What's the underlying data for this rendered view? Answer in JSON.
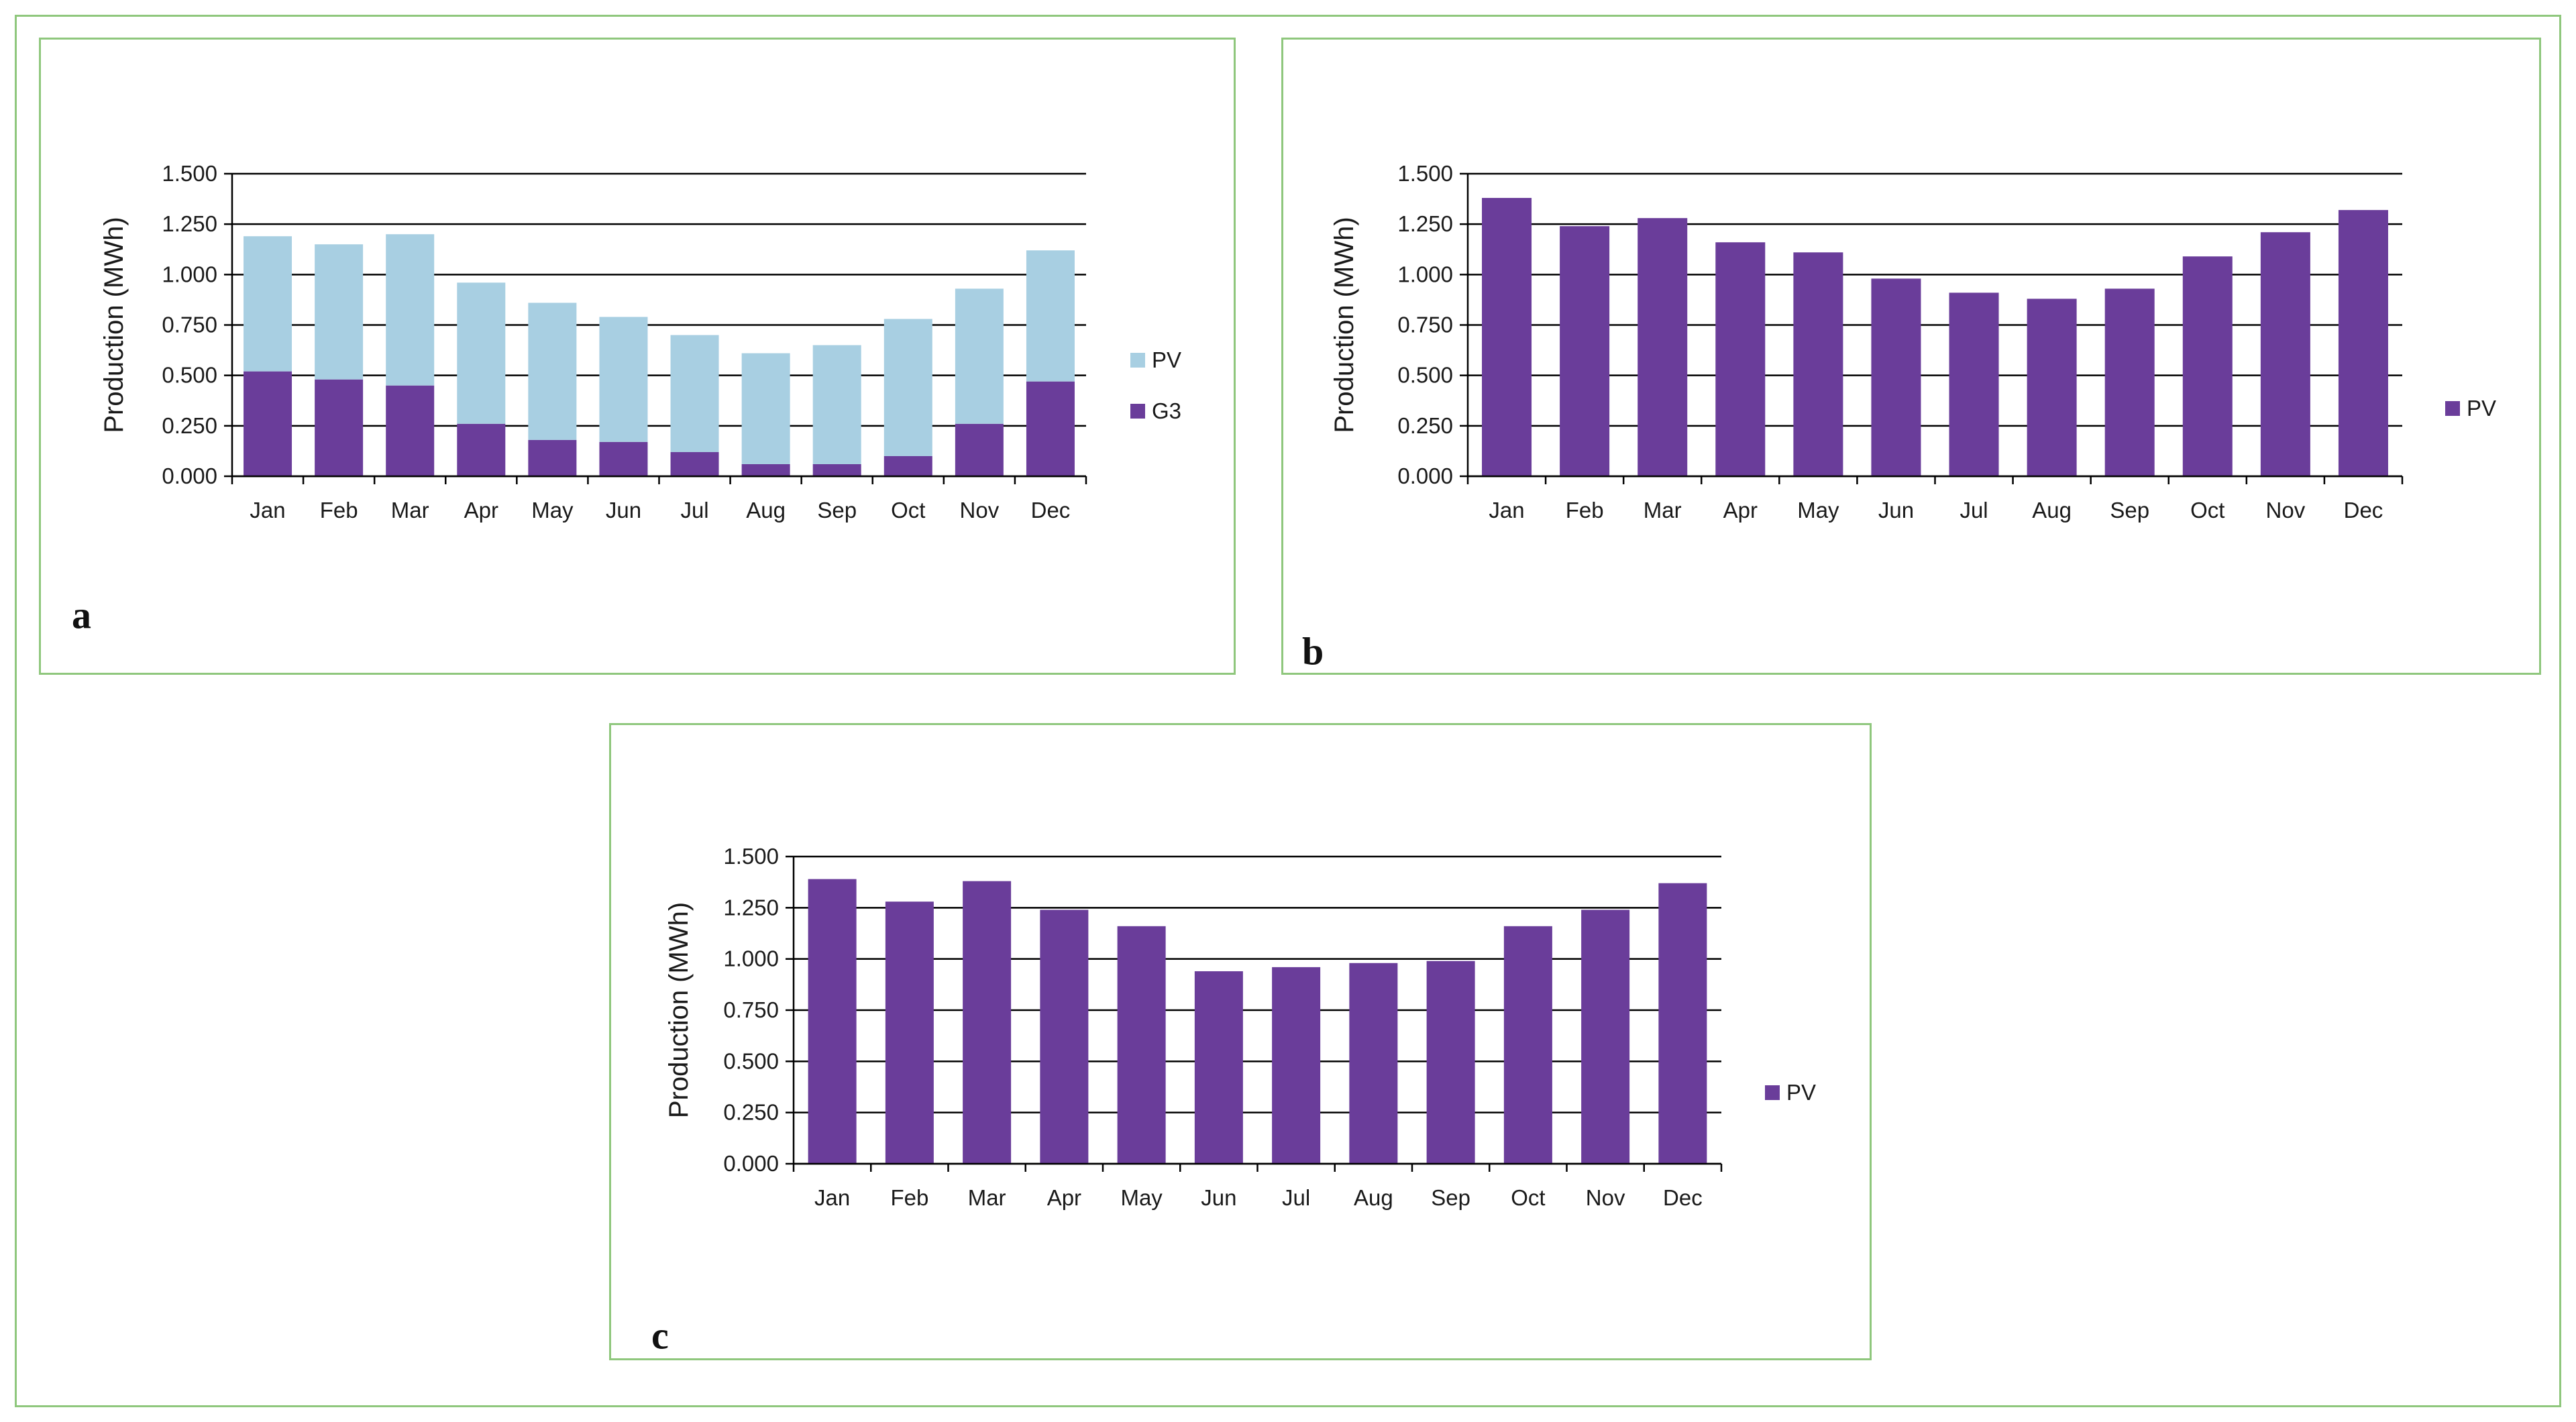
{
  "colors": {
    "frame": "#8fc77d",
    "pv_light": "#a8cfe2",
    "purple": "#6a3d9a",
    "grid": "#000000",
    "text": "#1a1a1a"
  },
  "panels": [
    {
      "letter": "a"
    },
    {
      "letter": "b"
    },
    {
      "letter": "c"
    }
  ],
  "chart_data": [
    {
      "type": "bar",
      "stacked": true,
      "categories": [
        "Jan",
        "Feb",
        "Mar",
        "Apr",
        "May",
        "Jun",
        "Jul",
        "Aug",
        "Sep",
        "Oct",
        "Nov",
        "Dec"
      ],
      "series": [
        {
          "name": "G3",
          "color": "#6a3d9a",
          "values": [
            0.52,
            0.48,
            0.45,
            0.26,
            0.18,
            0.17,
            0.12,
            0.06,
            0.06,
            0.1,
            0.26,
            0.47
          ]
        },
        {
          "name": "PV",
          "color": "#a8cfe2",
          "values": [
            0.67,
            0.67,
            0.75,
            0.7,
            0.68,
            0.62,
            0.58,
            0.55,
            0.59,
            0.68,
            0.67,
            0.65
          ]
        }
      ],
      "legend_order": [
        "PV",
        "G3"
      ],
      "ylabel": "Production (MWh)",
      "xlabel": "",
      "ylim": [
        0,
        1.5
      ],
      "yticks": [
        "0.000",
        "0.250",
        "0.500",
        "0.750",
        "1.000",
        "1.250",
        "1.500"
      ],
      "grid": true,
      "legend_position": "right"
    },
    {
      "type": "bar",
      "categories": [
        "Jan",
        "Feb",
        "Mar",
        "Apr",
        "May",
        "Jun",
        "Jul",
        "Aug",
        "Sep",
        "Oct",
        "Nov",
        "Dec"
      ],
      "series": [
        {
          "name": "PV",
          "color": "#6a3d9a",
          "values": [
            1.38,
            1.24,
            1.28,
            1.16,
            1.11,
            0.98,
            0.91,
            0.88,
            0.93,
            1.09,
            1.21,
            1.32
          ]
        }
      ],
      "legend_order": [
        "PV"
      ],
      "ylabel": "Production (MWh)",
      "xlabel": "",
      "ylim": [
        0,
        1.5
      ],
      "yticks": [
        "0.000",
        "0.250",
        "0.500",
        "0.750",
        "1.000",
        "1.250",
        "1.500"
      ],
      "grid": true,
      "legend_position": "right"
    },
    {
      "type": "bar",
      "categories": [
        "Jan",
        "Feb",
        "Mar",
        "Apr",
        "May",
        "Jun",
        "Jul",
        "Aug",
        "Sep",
        "Oct",
        "Nov",
        "Dec"
      ],
      "series": [
        {
          "name": "PV",
          "color": "#6a3d9a",
          "values": [
            1.39,
            1.28,
            1.38,
            1.24,
            1.16,
            0.94,
            0.96,
            0.98,
            0.99,
            1.16,
            1.24,
            1.37
          ]
        }
      ],
      "legend_order": [
        "PV"
      ],
      "ylabel": "Production (MWh)",
      "xlabel": "",
      "ylim": [
        0,
        1.5
      ],
      "yticks": [
        "0.000",
        "0.250",
        "0.500",
        "0.750",
        "1.000",
        "1.250",
        "1.500"
      ],
      "grid": true,
      "legend_position": "right"
    }
  ]
}
